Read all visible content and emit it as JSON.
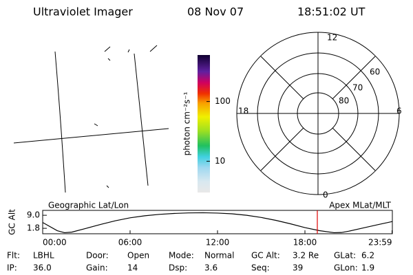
{
  "header": {
    "title": "Ultraviolet Imager",
    "date": "08 Nov 07",
    "time": "18:51:02 UT"
  },
  "colorbar": {
    "label": "photon cm⁻²s⁻¹",
    "log": true,
    "lim": [
      3,
      600
    ],
    "ticks": [
      10,
      100
    ]
  },
  "polar": {
    "mlt_labels": [
      "12",
      "18",
      "6",
      "0"
    ],
    "lat_labels": [
      "60",
      "70",
      "80"
    ]
  },
  "chart_data": {
    "type": "line",
    "left_label": "Geographic Lat/Lon",
    "right_label": "Apex MLat/MLT",
    "ylabel": "GC Alt",
    "x": [
      0,
      1,
      1.5,
      2,
      3,
      4,
      5,
      6,
      7,
      8,
      9,
      10,
      11,
      12,
      13,
      14,
      15,
      16,
      17,
      18,
      19,
      20,
      20.5,
      21,
      22,
      23,
      23.98
    ],
    "values": [
      5.0,
      0.5,
      -0.6,
      -0.3,
      1.8,
      4.0,
      6.0,
      7.6,
      8.7,
      9.5,
      10.0,
      10.3,
      10.4,
      10.2,
      9.8,
      9.0,
      7.8,
      6.2,
      4.3,
      2.2,
      0.5,
      -0.6,
      -0.5,
      0.2,
      2.0,
      3.8,
      5.5
    ],
    "color": "#000000",
    "marker_x": 18.85,
    "marker_color": "#e00000",
    "xlim": [
      0,
      24
    ],
    "ylim": [
      -1.2,
      11.7
    ],
    "xticks": [
      {
        "value": 0,
        "label": "00:00"
      },
      {
        "value": 6,
        "label": "06:00"
      },
      {
        "value": 12,
        "label": "12:00"
      },
      {
        "value": 18,
        "label": "18:00"
      },
      {
        "value": 23.98,
        "label": "23:59"
      }
    ],
    "yticks": [
      1.8,
      {
        "value": 9,
        "label": "9.0"
      }
    ]
  },
  "footer": [
    [
      {
        "label": "Flt:",
        "value": "LBHL"
      },
      {
        "label": "Door:",
        "value": "Open"
      },
      {
        "label": "Mode:",
        "value": "Normal"
      },
      {
        "label": "GC Alt:",
        "value": "3.2 Re"
      },
      {
        "label": "GLat:",
        "value": "6.2"
      }
    ],
    [
      {
        "label": "IP:",
        "value": "36.0"
      },
      {
        "label": "Gain:",
        "value": "14"
      },
      {
        "label": "Dsp:",
        "value": "3.6"
      },
      {
        "label": "Seq:",
        "value": "39"
      },
      {
        "label": "GLon:",
        "value": "1.9"
      }
    ]
  ]
}
